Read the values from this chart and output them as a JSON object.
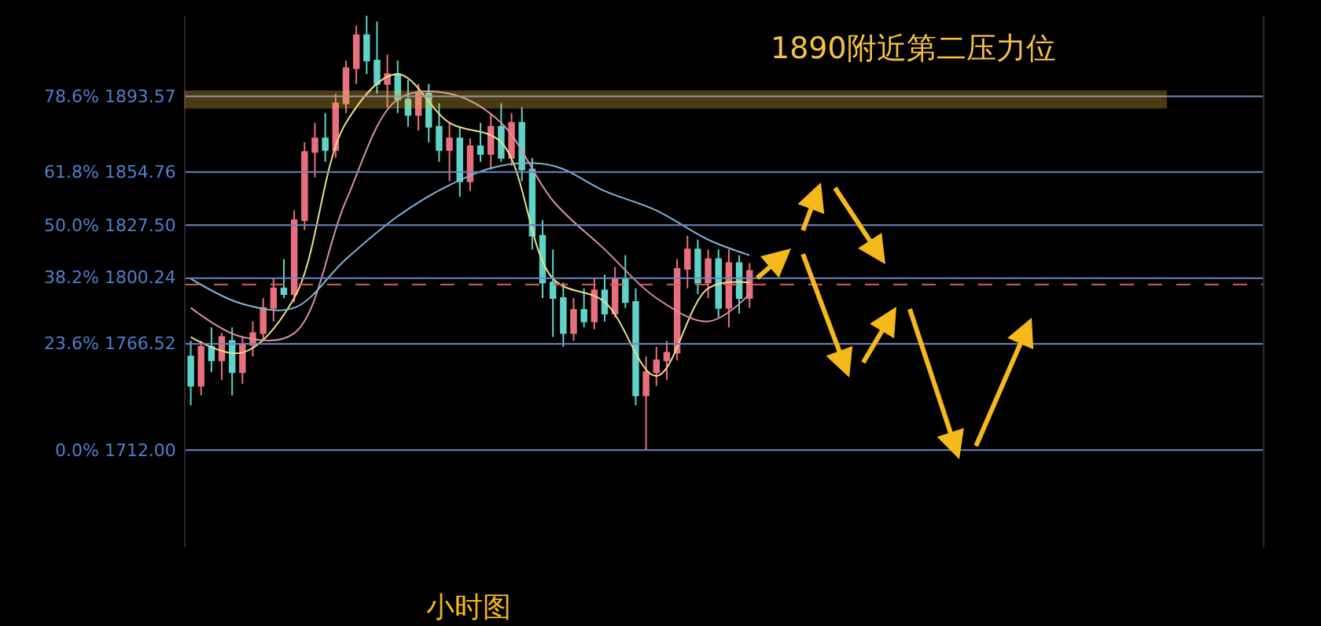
{
  "chart_data": {
    "type": "candlestick",
    "title": "小时图",
    "categories": [
      null,
      null,
      null,
      null,
      null,
      null,
      null,
      null,
      null,
      null,
      null,
      null,
      null,
      null,
      null,
      null,
      null,
      null,
      null,
      null,
      null,
      null,
      null,
      null,
      null,
      null,
      null,
      null,
      null,
      null,
      null,
      null,
      null,
      null,
      null,
      null,
      null,
      null,
      null,
      null,
      null,
      null,
      null,
      null,
      null,
      null,
      null,
      null,
      null,
      null,
      null,
      null,
      null,
      null,
      null
    ],
    "ohlc": [
      [
        1760,
        1768,
        1735,
        1745
      ],
      [
        1745,
        1768,
        1740,
        1765
      ],
      [
        1765,
        1775,
        1752,
        1758
      ],
      [
        1758,
        1772,
        1748,
        1770
      ],
      [
        1768,
        1775,
        1740,
        1752
      ],
      [
        1752,
        1770,
        1746,
        1766
      ],
      [
        1766,
        1778,
        1760,
        1772
      ],
      [
        1772,
        1790,
        1768,
        1785
      ],
      [
        1785,
        1800,
        1778,
        1795
      ],
      [
        1795,
        1810,
        1790,
        1792
      ],
      [
        1792,
        1835,
        1788,
        1830
      ],
      [
        1830,
        1870,
        1825,
        1865
      ],
      [
        1865,
        1880,
        1852,
        1872
      ],
      [
        1872,
        1885,
        1860,
        1866
      ],
      [
        1866,
        1895,
        1862,
        1890
      ],
      [
        1890,
        1912,
        1885,
        1908
      ],
      [
        1908,
        1930,
        1900,
        1925
      ],
      [
        1925,
        1935,
        1905,
        1912
      ],
      [
        1912,
        1932,
        1895,
        1900
      ],
      [
        1900,
        1915,
        1888,
        1905
      ],
      [
        1905,
        1912,
        1885,
        1892
      ],
      [
        1892,
        1902,
        1878,
        1884
      ],
      [
        1884,
        1900,
        1876,
        1895
      ],
      [
        1895,
        1900,
        1870,
        1878
      ],
      [
        1878,
        1890,
        1860,
        1866
      ],
      [
        1866,
        1880,
        1850,
        1872
      ],
      [
        1872,
        1878,
        1842,
        1850
      ],
      [
        1850,
        1872,
        1845,
        1868
      ],
      [
        1868,
        1880,
        1860,
        1864
      ],
      [
        1864,
        1885,
        1856,
        1878
      ],
      [
        1878,
        1890,
        1860,
        1862
      ],
      [
        1862,
        1885,
        1858,
        1880
      ],
      [
        1880,
        1888,
        1850,
        1856
      ],
      [
        1856,
        1862,
        1815,
        1822
      ],
      [
        1822,
        1830,
        1790,
        1798
      ],
      [
        1798,
        1815,
        1770,
        1790
      ],
      [
        1790,
        1798,
        1765,
        1772
      ],
      [
        1772,
        1790,
        1768,
        1784
      ],
      [
        1784,
        1795,
        1775,
        1778
      ],
      [
        1778,
        1800,
        1774,
        1794
      ],
      [
        1794,
        1802,
        1778,
        1782
      ],
      [
        1782,
        1806,
        1780,
        1800
      ],
      [
        1800,
        1812,
        1785,
        1788
      ],
      [
        1788,
        1795,
        1735,
        1740
      ],
      [
        1740,
        1760,
        1712,
        1752
      ],
      [
        1752,
        1765,
        1745,
        1758
      ],
      [
        1758,
        1768,
        1748,
        1762
      ],
      [
        1762,
        1810,
        1758,
        1805
      ],
      [
        1805,
        1822,
        1795,
        1815
      ],
      [
        1815,
        1820,
        1792,
        1798
      ],
      [
        1798,
        1815,
        1790,
        1810
      ],
      [
        1810,
        1815,
        1780,
        1785
      ],
      [
        1785,
        1815,
        1775,
        1808
      ],
      [
        1808,
        1812,
        1782,
        1790
      ],
      [
        1790,
        1808,
        1785,
        1804
      ]
    ],
    "colors": [
      "#5fd3c9",
      "#e8707e",
      "#5fd3c9",
      "#e8707e",
      "#5fd3c9",
      "#e8707e",
      "#e8707e",
      "#e8707e",
      "#e8707e",
      "#5fd3c9",
      "#e8707e",
      "#e8707e",
      "#e8707e",
      "#5fd3c9",
      "#e8707e",
      "#e8707e",
      "#e8707e",
      "#5fd3c9",
      "#5fd3c9",
      "#e8707e",
      "#5fd3c9",
      "#5fd3c9",
      "#e8707e",
      "#5fd3c9",
      "#5fd3c9",
      "#e8707e",
      "#5fd3c9",
      "#e8707e",
      "#5fd3c9",
      "#e8707e",
      "#5fd3c9",
      "#e8707e",
      "#5fd3c9",
      "#5fd3c9",
      "#5fd3c9",
      "#5fd3c9",
      "#5fd3c9",
      "#e8707e",
      "#5fd3c9",
      "#e8707e",
      "#5fd3c9",
      "#e8707e",
      "#5fd3c9",
      "#5fd3c9",
      "#e8707e",
      "#e8707e",
      "#e8707e",
      "#e8707e",
      "#e8707e",
      "#5fd3c9",
      "#e8707e",
      "#5fd3c9",
      "#e8707e",
      "#5fd3c9",
      "#e8707e"
    ],
    "series": [
      {
        "type": "line",
        "color": "#e8e08a",
        "values": [
          1770,
          null,
          null,
          null,
          null,
          1762,
          null,
          null,
          null,
          null,
          1790,
          null,
          null,
          null,
          null,
          1880,
          null,
          null,
          null,
          null,
          1905,
          null,
          null,
          null,
          null,
          1880,
          null,
          null,
          null,
          null,
          1870,
          null,
          null,
          null,
          null,
          1800,
          null,
          null,
          null,
          null,
          1788,
          null,
          null,
          null,
          null,
          1750,
          null,
          null,
          null,
          null,
          1795,
          null,
          null,
          null,
          1798
        ]
      },
      {
        "type": "line",
        "color": "#d48fa8",
        "values": [
          1785,
          null,
          null,
          null,
          null,
          1770,
          null,
          null,
          null,
          null,
          1772,
          null,
          null,
          null,
          null,
          1840,
          null,
          null,
          null,
          null,
          1892,
          null,
          null,
          null,
          null,
          1895,
          null,
          null,
          null,
          null,
          1880,
          null,
          null,
          null,
          null,
          1840,
          null,
          null,
          null,
          null,
          1815,
          null,
          null,
          null,
          null,
          1790,
          null,
          null,
          null,
          null,
          1778,
          null,
          null,
          null,
          1792
        ]
      },
      {
        "type": "line",
        "color": "#7fb3d9",
        "values": [
          1800,
          null,
          null,
          null,
          null,
          1787,
          null,
          null,
          null,
          null,
          1785,
          null,
          null,
          null,
          null,
          1810,
          null,
          null,
          null,
          null,
          1832,
          null,
          null,
          null,
          null,
          1848,
          null,
          null,
          null,
          null,
          1858,
          null,
          null,
          null,
          null,
          1858,
          null,
          null,
          null,
          null,
          1845,
          null,
          null,
          null,
          null,
          1835,
          null,
          null,
          null,
          null,
          1820,
          null,
          null,
          null,
          1812
        ]
      }
    ],
    "ylim": [
      1662,
      1935
    ],
    "ref_lines": [
      {
        "axis": "y",
        "value": 1797,
        "label": null,
        "color": "#e05a5a",
        "line_style": "dashed"
      },
      {
        "axis": "y",
        "value": 1712,
        "label": "0.0% 1712.00",
        "color": "#6f86c2"
      },
      {
        "axis": "y",
        "value": 1766.52,
        "label": "23.6% 1766.52",
        "color": "#6f86c2"
      },
      {
        "axis": "y",
        "value": 1800.24,
        "label": "38.2% 1800.24",
        "color": "#6f86c2"
      },
      {
        "axis": "y",
        "value": 1827.5,
        "label": "50.0% 1827.50",
        "color": "#6f86c2"
      },
      {
        "axis": "y",
        "value": 1854.76,
        "label": "61.8% 1854.76",
        "color": "#6f86c2"
      },
      {
        "axis": "y",
        "value": 1893.57,
        "label": "78.6% 1893.57",
        "color": "#6f86c2"
      }
    ],
    "bands": [
      {
        "axis": "y",
        "from": 1888,
        "to": 1896,
        "label": "1890附近第二压力位",
        "color": "#f5c242"
      }
    ]
  }
}
